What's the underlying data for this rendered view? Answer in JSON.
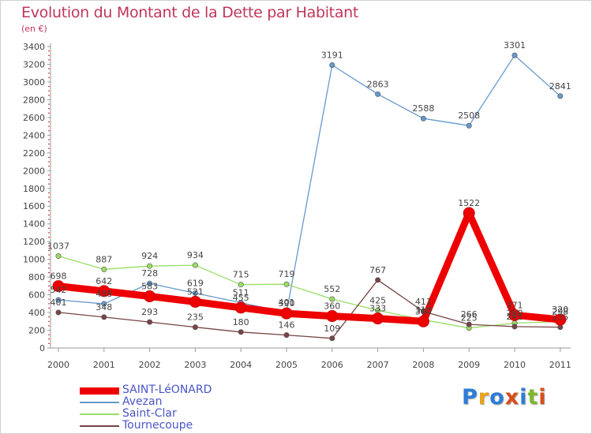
{
  "title": "Evolution du Montant de la Dette par Habitant",
  "subtitle": "(en €)",
  "logo": {
    "text": "Proxiti",
    "letter_colors": [
      "#2e7dd7",
      "#e8a317",
      "#2e7dd7",
      "#d94c1a",
      "#2e7dd7",
      "#7cb82f",
      "#d94c1a"
    ]
  },
  "chart_data": {
    "type": "line",
    "title": "Evolution du Montant de la Dette par Habitant",
    "ylabel": "(en €)",
    "xlabel": "",
    "categories": [
      "2000",
      "2001",
      "2002",
      "2003",
      "2004",
      "2005",
      "2006",
      "2007",
      "2008",
      "2009",
      "2010",
      "2011"
    ],
    "ylim": [
      0,
      3400
    ],
    "yticks": [
      0,
      200,
      400,
      600,
      800,
      1000,
      1200,
      1400,
      1600,
      1800,
      2000,
      2200,
      2400,
      2600,
      2800,
      3000,
      3200,
      3400
    ],
    "grid": false,
    "legend_position": "bottom-left",
    "series": [
      {
        "name": "SAINT-LéONARD",
        "color": "#ee0000",
        "values": [
          698,
          642,
          583,
          521,
          455,
          390,
          360,
          333,
          300,
          1522,
          371,
          320
        ]
      },
      {
        "name": "Avezan",
        "color": "#6699cc",
        "values": [
          542,
          498,
          728,
          619,
          511,
          401,
          3191,
          2863,
          2588,
          2508,
          3301,
          2841
        ]
      },
      {
        "name": "Saint-Clar",
        "color": "#99dd66",
        "values": [
          1037,
          887,
          924,
          934,
          715,
          719,
          552,
          425,
          318,
          225,
          280,
          298
        ]
      },
      {
        "name": "Tournecoupe",
        "color": "#774444",
        "values": [
          401,
          348,
          293,
          235,
          180,
          146,
          109,
          767,
          411,
          266,
          241,
          235
        ]
      }
    ]
  }
}
